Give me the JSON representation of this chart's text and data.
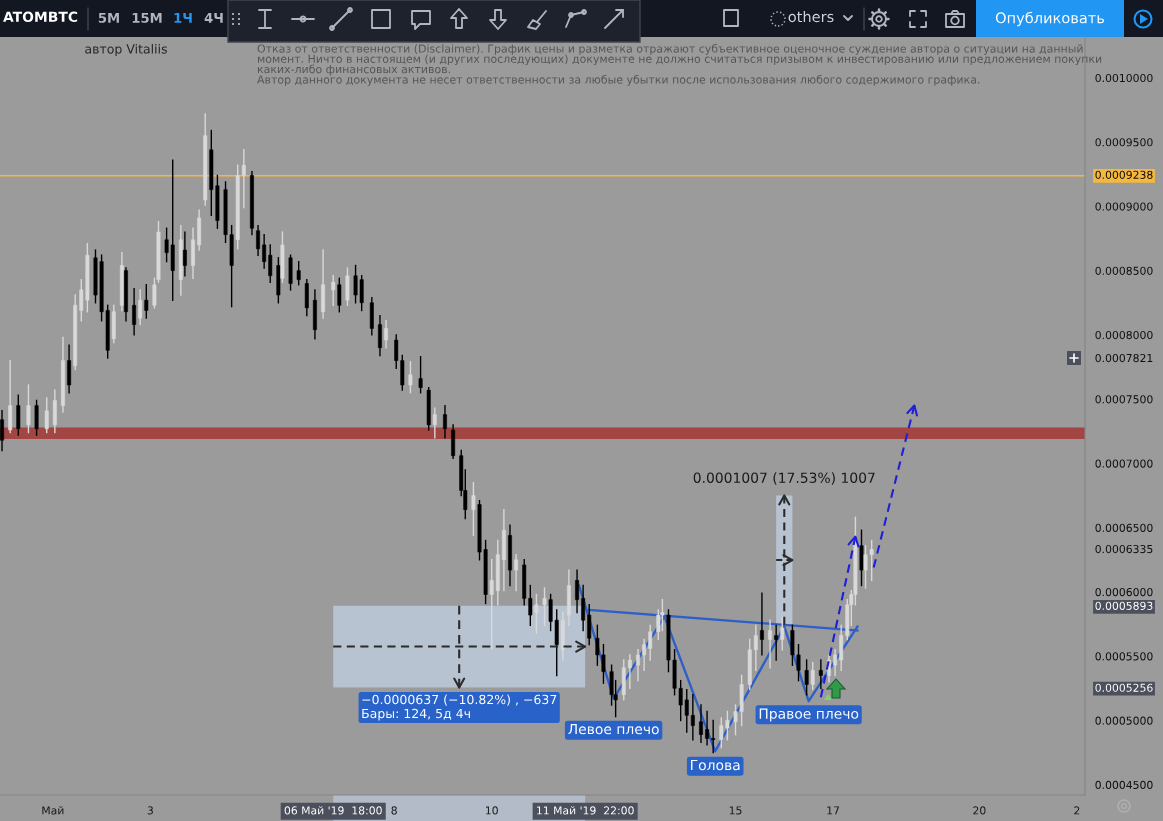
{
  "chart_data": {
    "type": "candlestick",
    "title": "ATOMBTC",
    "subtitle": "автор Vitaliis",
    "annotations": [
      "Отказ от ответственности (Disclaimer). График цены и разметка отражают субъективное оценочное суждение автора о ситуации на данный\nмомент. Ничто в настоящем (и других последующих) документе не должно считаться призывом к инвестированию или предложением покупки\nкаких-либо финансовых активов.\nАвтор данного документа не несет ответственности за любые убытки после использования любого содержимого графика.",
      "5M",
      "15M",
      "1Ч",
      "4Ч",
      "others",
      "Опубликовать",
      {
        "text": "Левое плечо",
        "x": "2019-05-12T12:00",
        "y": 0.000517
      },
      {
        "text": "Голова",
        "x": "2019-05-14T14:00",
        "y": 0.000476
      },
      {
        "text": "Правое плечо",
        "x": "2019-05-16T12:00",
        "y": 0.000515
      },
      {
        "text": "−0.0000637 (−10.82%) , −637\nБары: 124, 5д 4ч",
        "x": "2019-05-09T08:00",
        "y": 0.0005256
      },
      {
        "text": "0.0001007 (17.53%) 1007",
        "x": "2019-05-16T00:00",
        "y": 0.0006751
      }
    ],
    "x": [
      "2019-04-29T23:00",
      "2019-04-30T03:00",
      "2019-04-30T07:00",
      "2019-04-30T12:00",
      "2019-04-30T16:00",
      "2019-04-30T21:00",
      "2019-05-01T01:00",
      "2019-05-01T05:00",
      "2019-05-01T08:00",
      "2019-05-01T11:00",
      "2019-05-01T14:00",
      "2019-05-01T17:00",
      "2019-05-01T21:00",
      "2019-05-02T00:00",
      "2019-05-02T03:00",
      "2019-05-02T06:00",
      "2019-05-02T10:00",
      "2019-05-02T12:00",
      "2019-05-02T16:00",
      "2019-05-02T19:00",
      "2019-05-02T22:00",
      "2019-05-03T02:00",
      "2019-05-03T04:00",
      "2019-05-03T08:00",
      "2019-05-03T11:00",
      "2019-05-03T15:00",
      "2019-05-03T17:00",
      "2019-05-03T21:00",
      "2019-05-04T00:00",
      "2019-05-04T03:00",
      "2019-05-04T06:00",
      "2019-05-04T09:00",
      "2019-05-04T13:00",
      "2019-05-04T16:00",
      "2019-05-04T19:00",
      "2019-05-04T22:00",
      "2019-05-05T02:00",
      "2019-05-05T05:00",
      "2019-05-05T08:00",
      "2019-05-05T11:00",
      "2019-05-05T15:00",
      "2019-05-05T17:00",
      "2019-05-05T21:00",
      "2019-05-06T01:00",
      "2019-05-06T05:00",
      "2019-05-06T09:00",
      "2019-05-06T13:00",
      "2019-05-06T18:00",
      "2019-05-06T21:00",
      "2019-05-07T01:00",
      "2019-05-07T05:00",
      "2019-05-07T08:00",
      "2019-05-07T13:00",
      "2019-05-07T17:00",
      "2019-05-07T20:00",
      "2019-05-08T01:00",
      "2019-05-08T04:00",
      "2019-05-08T08:00",
      "2019-05-08T13:00",
      "2019-05-08T17:00",
      "2019-05-08T20:00",
      "2019-05-09T01:00",
      "2019-05-09T05:00",
      "2019-05-09T09:00",
      "2019-05-09T11:00",
      "2019-05-09T15:00",
      "2019-05-09T18:00",
      "2019-05-09T21:00",
      "2019-05-10T00:00",
      "2019-05-10T03:00",
      "2019-05-10T06:00",
      "2019-05-10T09:00",
      "2019-05-10T12:00",
      "2019-05-10T16:00",
      "2019-05-10T19:00",
      "2019-05-10T22:00",
      "2019-05-11T02:00",
      "2019-05-11T05:00",
      "2019-05-11T08:00",
      "2019-05-11T11:00",
      "2019-05-11T14:00",
      "2019-05-11T18:00",
      "2019-05-11T21:00",
      "2019-05-12T00:00",
      "2019-05-12T04:00",
      "2019-05-12T07:00",
      "2019-05-12T11:00",
      "2019-05-12T13:00",
      "2019-05-12T17:00",
      "2019-05-12T20:00",
      "2019-05-13T00:00",
      "2019-05-13T03:00",
      "2019-05-13T06:00",
      "2019-05-13T10:00",
      "2019-05-13T12:00",
      "2019-05-13T15:00",
      "2019-05-13T18:00",
      "2019-05-13T21:00",
      "2019-05-14T00:00",
      "2019-05-14T03:00",
      "2019-05-14T07:00",
      "2019-05-14T10:00",
      "2019-05-14T13:00",
      "2019-05-14T17:00",
      "2019-05-14T20:00",
      "2019-05-15T00:00",
      "2019-05-15T03:00",
      "2019-05-15T07:00",
      "2019-05-15T10:00",
      "2019-05-15T13:00",
      "2019-05-15T17:00",
      "2019-05-15T20:00",
      "2019-05-15T23:00",
      "2019-05-16T04:00",
      "2019-05-16T07:00",
      "2019-05-16T11:00",
      "2019-05-16T14:00",
      "2019-05-16T18:00",
      "2019-05-16T22:00",
      "2019-05-17T01:00",
      "2019-05-17T04:00",
      "2019-05-17T07:00",
      "2019-05-17T09:00",
      "2019-05-17T11:00",
      "2019-05-17T14:00",
      "2019-05-17T16:00",
      "2019-05-17T19:00"
    ],
    "ohlc": [
      [
        0.000734,
        0.000741,
        0.00071,
        0.000718
      ],
      [
        0.000726,
        0.00078,
        0.000724,
        0.000745
      ],
      [
        0.000745,
        0.000753,
        0.000722,
        0.000727
      ],
      [
        0.00073,
        0.000761,
        0.000724,
        0.000745
      ],
      [
        0.000745,
        0.000749,
        0.000722,
        0.000727
      ],
      [
        0.000727,
        0.000751,
        0.000724,
        0.000741
      ],
      [
        0.00073,
        0.000757,
        0.000724,
        0.000749
      ],
      [
        0.000745,
        0.000798,
        0.00074,
        0.00078
      ],
      [
        0.00078,
        0.000792,
        0.000755,
        0.000761
      ],
      [
        0.000776,
        0.000831,
        0.000773,
        0.000823
      ],
      [
        0.000819,
        0.000843,
        0.000811,
        0.000835
      ],
      [
        0.000827,
        0.000871,
        0.000818,
        0.000862
      ],
      [
        0.00086,
        0.000866,
        0.000825,
        0.000831
      ],
      [
        0.000857,
        0.000862,
        0.000811,
        0.000818
      ],
      [
        0.000819,
        0.000823,
        0.000782,
        0.000788
      ],
      [
        0.000797,
        0.000823,
        0.000794,
        0.000818
      ],
      [
        0.000823,
        0.000864,
        0.000819,
        0.000854
      ],
      [
        0.00085,
        0.000852,
        0.000811,
        0.000818
      ],
      [
        0.000823,
        0.000836,
        0.0008,
        0.000808
      ],
      [
        0.000813,
        0.000835,
        0.000808,
        0.000827
      ],
      [
        0.000827,
        0.000839,
        0.000813,
        0.000819
      ],
      [
        0.000823,
        0.000844,
        0.000821,
        0.000839
      ],
      [
        0.000843,
        0.000888,
        0.000841,
        0.00088
      ],
      [
        0.000874,
        0.000883,
        0.000857,
        0.000864
      ],
      [
        0.00087,
        0.000936,
        0.000827,
        0.00085
      ],
      [
        0.000843,
        0.000885,
        0.000831,
        0.000874
      ],
      [
        0.000866,
        0.00088,
        0.000846,
        0.000854
      ],
      [
        0.000854,
        0.000883,
        0.000844,
        0.000874
      ],
      [
        0.00087,
        0.000897,
        0.000866,
        0.000891
      ],
      [
        0.000905,
        0.000972,
        0.000901,
        0.000955
      ],
      [
        0.000944,
        0.000959,
        0.000893,
        0.000913
      ],
      [
        0.000916,
        0.000924,
        0.000883,
        0.000889
      ],
      [
        0.000913,
        0.000919,
        0.000872,
        0.000878
      ],
      [
        0.000878,
        0.000885,
        0.000822,
        0.000854
      ],
      [
        0.000874,
        0.000932,
        0.000867,
        0.000924
      ],
      [
        0.000924,
        0.000944,
        0.000899,
        0.000932
      ],
      [
        0.000924,
        0.000927,
        0.000878,
        0.000883
      ],
      [
        0.000881,
        0.000885,
        0.000862,
        0.000867
      ],
      [
        0.00087,
        0.000878,
        0.000852,
        0.000857
      ],
      [
        0.000862,
        0.00087,
        0.000841,
        0.000846
      ],
      [
        0.000854,
        0.00086,
        0.000825,
        0.000831
      ],
      [
        0.000844,
        0.00088,
        0.000841,
        0.00087
      ],
      [
        0.00086,
        0.000862,
        0.000835,
        0.00084
      ],
      [
        0.00085,
        0.000857,
        0.000839,
        0.000843
      ],
      [
        0.00084,
        0.000843,
        0.000815,
        0.000821
      ],
      [
        0.000827,
        0.000835,
        0.000797,
        0.000804
      ],
      [
        0.000818,
        0.000866,
        0.000813,
        0.000839
      ],
      [
        0.000835,
        0.000846,
        0.000823,
        0.000841
      ],
      [
        0.000839,
        0.000844,
        0.000818,
        0.000823
      ],
      [
        0.000827,
        0.000852,
        0.000823,
        0.000846
      ],
      [
        0.000846,
        0.000854,
        0.000825,
        0.000831
      ],
      [
        0.000843,
        0.000846,
        0.000819,
        0.000825
      ],
      [
        0.000825,
        0.000829,
        0.0008,
        0.000805
      ],
      [
        0.000808,
        0.000815,
        0.000784,
        0.00079
      ],
      [
        0.000796,
        0.000811,
        0.00079,
        0.000805
      ],
      [
        0.000796,
        0.0008,
        0.000774,
        0.00078
      ],
      [
        0.00078,
        0.000784,
        0.000757,
        0.000761
      ],
      [
        0.000761,
        0.000779,
        0.000755,
        0.000769
      ],
      [
        0.000766,
        0.000783,
        0.000755,
        0.000759
      ],
      [
        0.000757,
        0.000759,
        0.000726,
        0.00073
      ],
      [
        0.00073,
        0.000743,
        0.00072,
        0.000738
      ],
      [
        0.000738,
        0.000745,
        0.00072,
        0.000727
      ],
      [
        0.000726,
        0.00073,
        0.000704,
        0.000706
      ],
      [
        0.000706,
        0.00071,
        0.000675,
        0.000679
      ],
      [
        0.000679,
        0.000695,
        0.000657,
        0.000664
      ],
      [
        0.000664,
        0.000685,
        0.000644,
        0.000675
      ],
      [
        0.000668,
        0.000671,
        0.000625,
        0.000631
      ],
      [
        0.000633,
        0.00064,
        0.000591,
        0.000598
      ],
      [
        0.000598,
        0.000625,
        0.000556,
        0.000609
      ],
      [
        0.000601,
        0.00064,
        0.00059,
        0.000629
      ],
      [
        0.000625,
        0.000664,
        0.000601,
        0.000648
      ],
      [
        0.000644,
        0.000652,
        0.000605,
        0.000617
      ],
      [
        0.000617,
        0.000629,
        0.000601,
        0.000625
      ],
      [
        0.000621,
        0.000625,
        0.00059,
        0.000595
      ],
      [
        0.000595,
        0.000605,
        0.000574,
        0.000582
      ],
      [
        0.000584,
        0.000598,
        0.000568,
        0.00059
      ],
      [
        0.00059,
        0.000603,
        0.000574,
        0.000595
      ],
      [
        0.000594,
        0.000598,
        0.00057,
        0.000577
      ],
      [
        0.000578,
        0.000586,
        0.000535,
        0.000559
      ],
      [
        0.000555,
        0.000584,
        0.000547,
        0.000578
      ],
      [
        0.000582,
        0.000617,
        0.000574,
        0.000605
      ],
      [
        0.000609,
        0.000617,
        0.000584,
        0.000594
      ],
      [
        0.000595,
        0.000605,
        0.00057,
        0.000578
      ],
      [
        0.000582,
        0.00059,
        0.000559,
        0.000564
      ],
      [
        0.000564,
        0.000574,
        0.000543,
        0.000551
      ],
      [
        0.000551,
        0.000559,
        0.000529,
        0.000538
      ],
      [
        0.000538,
        0.000543,
        0.000512,
        0.00052
      ],
      [
        0.00052,
        0.000531,
        0.000503,
        0.000516
      ],
      [
        0.00052,
        0.000547,
        0.000516,
        0.000541
      ],
      [
        0.000541,
        0.000551,
        0.000525,
        0.000547
      ],
      [
        0.000543,
        0.000555,
        0.000531,
        0.000551
      ],
      [
        0.000551,
        0.000563,
        0.000539,
        0.000559
      ],
      [
        0.000556,
        0.000574,
        0.000547,
        0.000569
      ],
      [
        0.000569,
        0.000586,
        0.000563,
        0.000582
      ],
      [
        0.000582,
        0.000594,
        0.00057,
        0.000584
      ],
      [
        0.000582,
        0.000586,
        0.000538,
        0.000547
      ],
      [
        0.000547,
        0.000555,
        0.00052,
        0.000525
      ],
      [
        0.000525,
        0.000531,
        0.0005,
        0.000512
      ],
      [
        0.000516,
        0.000524,
        0.000491,
        0.000504
      ],
      [
        0.000504,
        0.00052,
        0.000485,
        0.000496
      ],
      [
        0.000499,
        0.000512,
        0.000483,
        0.000489
      ],
      [
        0.000493,
        0.000507,
        0.000481,
        0.000486
      ],
      [
        0.000486,
        0.0005,
        0.000475,
        0.000485
      ],
      [
        0.000485,
        0.000502,
        0.000479,
        0.000496
      ],
      [
        0.000494,
        0.000507,
        0.000485,
        0.0005
      ],
      [
        0.000499,
        0.000512,
        0.000489,
        0.000507
      ],
      [
        0.000507,
        0.000535,
        0.000496,
        0.000528
      ],
      [
        0.000528,
        0.000563,
        0.000524,
        0.000555
      ],
      [
        0.000555,
        0.000574,
        0.000539,
        0.000566
      ],
      [
        0.00057,
        0.000599,
        0.000551,
        0.000563
      ],
      [
        0.000563,
        0.000578,
        0.000541,
        0.00057
      ],
      [
        0.000566,
        0.000574,
        0.000547,
        0.000563
      ],
      [
        0.000563,
        0.00058,
        0.000555,
        0.000572
      ],
      [
        0.00057,
        0.000574,
        0.000543,
        0.000551
      ],
      [
        0.000551,
        0.000559,
        0.000531,
        0.000539
      ],
      [
        0.000539,
        0.000547,
        0.00052,
        0.000528
      ],
      [
        0.000528,
        0.000545,
        0.000524,
        0.000539
      ],
      [
        0.000539,
        0.000547,
        0.000525,
        0.000535
      ],
      [
        0.000535,
        0.000551,
        0.00053,
        0.000547
      ],
      [
        0.000543,
        0.000555,
        0.000535,
        0.000551
      ],
      [
        0.000547,
        0.000574,
        0.000539,
        0.000566
      ],
      [
        0.000566,
        0.000594,
        0.000563,
        0.00059
      ],
      [
        0.00059,
        0.000601,
        0.000574,
        0.000598
      ],
      [
        0.000598,
        0.000658,
        0.00059,
        0.00064
      ],
      [
        0.000636,
        0.000648,
        0.000605,
        0.000617
      ],
      [
        0.000617,
        0.000636,
        0.000603,
        0.000629
      ],
      [
        0.000629,
        0.00064,
        0.000609,
        0.000633
      ]
    ],
    "colors": [
      "#000000",
      "#d9d9d9",
      "#000000",
      "#d9d9d9",
      "#000000",
      "#d9d9d9",
      "#d9d9d9",
      "#d9d9d9",
      "#000000",
      "#d9d9d9",
      "#d9d9d9",
      "#d9d9d9",
      "#000000",
      "#000000",
      "#000000",
      "#d9d9d9",
      "#d9d9d9",
      "#000000",
      "#000000",
      "#d9d9d9",
      "#000000",
      "#d9d9d9",
      "#d9d9d9",
      "#000000",
      "#000000",
      "#d9d9d9",
      "#000000",
      "#d9d9d9",
      "#d9d9d9",
      "#d9d9d9",
      "#000000",
      "#000000",
      "#000000",
      "#000000",
      "#d9d9d9",
      "#d9d9d9",
      "#000000",
      "#000000",
      "#000000",
      "#000000",
      "#000000",
      "#d9d9d9",
      "#000000",
      "#000000",
      "#000000",
      "#000000",
      "#d9d9d9",
      "#d9d9d9",
      "#000000",
      "#d9d9d9",
      "#000000",
      "#000000",
      "#000000",
      "#000000",
      "#d9d9d9",
      "#000000",
      "#000000",
      "#d9d9d9",
      "#000000",
      "#000000",
      "#d9d9d9",
      "#000000",
      "#000000",
      "#000000",
      "#000000",
      "#d9d9d9",
      "#000000",
      "#000000",
      "#d9d9d9",
      "#d9d9d9",
      "#d9d9d9",
      "#000000",
      "#d9d9d9",
      "#000000",
      "#000000",
      "#d9d9d9",
      "#d9d9d9",
      "#000000",
      "#000000",
      "#d9d9d9",
      "#d9d9d9",
      "#000000",
      "#000000",
      "#000000",
      "#000000",
      "#000000",
      "#000000",
      "#000000",
      "#d9d9d9",
      "#d9d9d9",
      "#d9d9d9",
      "#d9d9d9",
      "#d9d9d9",
      "#d9d9d9",
      "#d9d9d9",
      "#000000",
      "#000000",
      "#000000",
      "#000000",
      "#000000",
      "#000000",
      "#000000",
      "#000000",
      "#d9d9d9",
      "#d9d9d9",
      "#d9d9d9",
      "#d9d9d9",
      "#d9d9d9",
      "#d9d9d9",
      "#000000",
      "#d9d9d9",
      "#000000",
      "#d9d9d9",
      "#000000",
      "#000000",
      "#000000",
      "#d9d9d9",
      "#000000",
      "#d9d9d9",
      "#d9d9d9",
      "#d9d9d9",
      "#d9d9d9",
      "#d9d9d9",
      "#d9d9d9",
      "#000000",
      "#d9d9d9",
      "#d9d9d9"
    ],
    "series": [
      {
        "type": "line",
        "color": "#2d5fc8",
        "line_style": "solid",
        "x": [
          "2019-05-11T19:00",
          "2019-05-12T12:00",
          "2019-05-13T13:00",
          "2019-05-14T14:00",
          "2019-05-16T00:00",
          "2019-05-16T12:00",
          "2019-05-17T12:00"
        ],
        "values": [
          0.000605,
          0.000517,
          0.000581,
          0.000476,
          0.000573,
          0.000515,
          0.000573
        ]
      },
      {
        "type": "line",
        "color": "#2d5fc8",
        "line_style": "solid",
        "x": [
          "2019-05-12T00:00",
          "2019-05-17T12:00"
        ],
        "values": [
          0.000586,
          0.00057
        ]
      },
      {
        "type": "line",
        "color": "#1f1fd6",
        "line_style": "dashed",
        "x": [
          "2019-05-16T18:00",
          "2019-05-17T11:00"
        ],
        "values": [
          0.000518,
          0.000643
        ]
      },
      {
        "type": "line",
        "color": "#1f1fd6",
        "line_style": "dashed",
        "x": [
          "2019-05-17T20:00",
          "2019-05-18T16:00"
        ],
        "values": [
          0.000619,
          0.000745
        ]
      },
      {
        "type": "line",
        "color": "#2b2b2b",
        "line_style": "dashed",
        "x": [
          "2019-05-06T18:00",
          "2019-05-11T22:00"
        ],
        "values": [
          0.0005575,
          0.0005575
        ],
        "lower": [
          0.0005256,
          0.0005256
        ],
        "upper": [
          0.0005893,
          0.0005893
        ]
      },
      {
        "type": "line",
        "color": "#2b2b2b",
        "line_style": "dashed",
        "x": [
          "2019-05-09T08:00",
          "2019-05-09T08:00"
        ],
        "values": [
          0.0005893,
          0.0005256
        ]
      },
      {
        "type": "line",
        "color": "#2b2b2b",
        "line_style": "dashed",
        "x": [
          "2019-05-15T20:00",
          "2019-05-16T04:00"
        ],
        "values": [
          0.0006248,
          0.0006248
        ],
        "lower": [
          0.0005744,
          0.0005744
        ],
        "upper": [
          0.0006751,
          0.0006751
        ]
      },
      {
        "type": "line",
        "color": "#2b2b2b",
        "line_style": "dashed",
        "x": [
          "2019-05-16T00:00",
          "2019-05-16T00:00"
        ],
        "values": [
          0.0005744,
          0.0006751
        ]
      }
    ],
    "ref_lines": [
      {
        "axis": "y",
        "value": 0.0009238,
        "label": "0.0009238",
        "color": "#f5b83d"
      }
    ],
    "bands": [
      {
        "axis": "y",
        "from": 0.000719,
        "to": 0.000728,
        "color": "#a3403d"
      }
    ],
    "xlim": [
      "2019-04-29T22:00",
      "2019-05-22T04:00"
    ],
    "xticks": [
      {
        "value": "2019-05-01",
        "label": "Май"
      },
      {
        "value": "2019-05-03",
        "label": "3"
      },
      {
        "value": "2019-05-06T18:00",
        "label": "06 Май '19  18:00"
      },
      {
        "value": "2019-05-08",
        "label": "8"
      },
      {
        "value": "2019-05-10",
        "label": "10"
      },
      {
        "value": "2019-05-11T22:00",
        "label": "11 Май '19  22:00"
      },
      {
        "value": "2019-05-15",
        "label": "15"
      },
      {
        "value": "2019-05-17",
        "label": "17"
      },
      {
        "value": "2019-05-20",
        "label": "20"
      },
      {
        "value": "2019-05-22",
        "label": "2"
      }
    ],
    "ylim": [
      0.000442,
      0.001031
    ],
    "yticks": [
      {
        "value": 0.001,
        "label": "0.0010000"
      },
      {
        "value": 0.00095,
        "label": "0.0009500"
      },
      {
        "value": 0.0009,
        "label": "0.0009000"
      },
      {
        "value": 0.00085,
        "label": "0.0008500"
      },
      {
        "value": 0.0008,
        "label": "0.0008000"
      },
      {
        "value": 0.0007821,
        "label": "0.0007821"
      },
      {
        "value": 0.00075,
        "label": "0.0007500"
      },
      {
        "value": 0.0007,
        "label": "0.0007000"
      },
      {
        "value": 0.00065,
        "label": "0.0006500"
      },
      {
        "value": 0.0006335,
        "label": "0.0006335"
      },
      {
        "value": 0.0006,
        "label": "0.0006000"
      },
      {
        "value": 0.0005893,
        "label": "0.0005893"
      },
      {
        "value": 0.00055,
        "label": "0.0005500"
      },
      {
        "value": 0.0005256,
        "label": "0.0005256"
      },
      {
        "value": 0.0005,
        "label": "0.0005000"
      },
      {
        "value": 0.00045,
        "label": "0.0004500"
      }
    ]
  }
}
